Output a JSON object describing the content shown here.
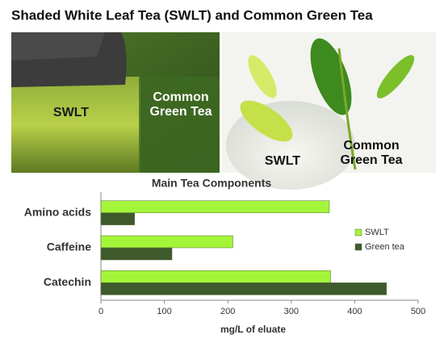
{
  "title": "Shaded White Leaf Tea (SWLT) and Common Green Tea",
  "photos": [
    {
      "labels": [
        "SWLT",
        "Common Green Tea"
      ]
    },
    {
      "labels": [
        "SWLT",
        "Common Green Tea"
      ]
    }
  ],
  "chart_data": {
    "type": "bar",
    "orientation": "horizontal",
    "title": "Main Tea Components",
    "categories": [
      "Amino acids",
      "Caffeine",
      "Catechin"
    ],
    "series": [
      {
        "name": "SWLT",
        "color": "#a3f53a",
        "values": [
          360,
          208,
          362
        ]
      },
      {
        "name": "Green tea",
        "color": "#3f5a2c",
        "values": [
          53,
          112,
          450
        ]
      }
    ],
    "x_label": "mg/L of eluate",
    "xlim": [
      0,
      500
    ],
    "xticks": [
      0,
      100,
      200,
      300,
      400,
      500
    ],
    "legend": "right",
    "grid": false
  }
}
